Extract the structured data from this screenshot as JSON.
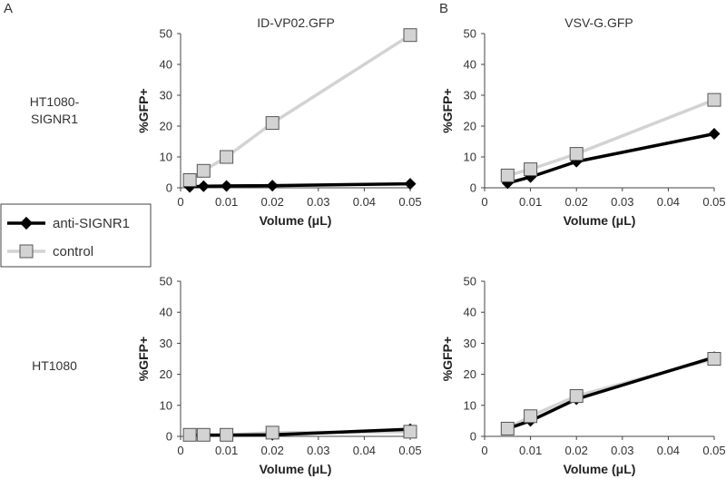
{
  "figure": {
    "panel_letters": [
      "A",
      "B"
    ],
    "row_labels": [
      {
        "lines": [
          "HT1080-",
          "SIGNR1"
        ]
      },
      {
        "lines": [
          "HT1080"
        ]
      }
    ],
    "legend": [
      {
        "name": "anti-SIGNR1",
        "color": "#000000",
        "marker": "diamond"
      },
      {
        "name": "control",
        "color": "#d3d3d3",
        "marker": "square"
      }
    ]
  },
  "chart_data": [
    {
      "type": "line",
      "title": "ID-VP02.GFP",
      "xlabel": "Volume (μL)",
      "ylabel": "%GFP+",
      "xlim": [
        0,
        0.05
      ],
      "ylim": [
        0,
        50
      ],
      "x_ticks": [
        "0",
        "0.01",
        "0.02",
        "0.03",
        "0.04",
        "0.05"
      ],
      "y_ticks": [
        "0",
        "10",
        "20",
        "30",
        "40",
        "50"
      ],
      "series": [
        {
          "name": "control",
          "x": [
            0.002,
            0.005,
            0.01,
            0.02,
            0.05
          ],
          "values": [
            2.5,
            5.5,
            10,
            21,
            49.5
          ]
        },
        {
          "name": "anti-SIGNR1",
          "x": [
            0.002,
            0.005,
            0.01,
            0.02,
            0.05
          ],
          "values": [
            0.3,
            0.5,
            0.6,
            0.7,
            1.3
          ]
        }
      ]
    },
    {
      "type": "line",
      "title": "VSV-G.GFP",
      "xlabel": "Volume (μL)",
      "ylabel": "%GFP+",
      "xlim": [
        0,
        0.05
      ],
      "ylim": [
        0,
        50
      ],
      "x_ticks": [
        "0",
        "0.01",
        "0.02",
        "0.03",
        "0.04",
        "0.05"
      ],
      "y_ticks": [
        "0",
        "10",
        "20",
        "30",
        "40",
        "50"
      ],
      "series": [
        {
          "name": "control",
          "x": [
            0.005,
            0.01,
            0.02,
            0.05
          ],
          "values": [
            4,
            6,
            11,
            28.5
          ]
        },
        {
          "name": "anti-SIGNR1",
          "x": [
            0.005,
            0.01,
            0.02,
            0.05
          ],
          "values": [
            1.5,
            3.5,
            8.5,
            17.5
          ]
        }
      ]
    },
    {
      "type": "line",
      "title": "",
      "xlabel": "Volume (μL)",
      "ylabel": "%GFP+",
      "xlim": [
        0,
        0.05
      ],
      "ylim": [
        0,
        50
      ],
      "x_ticks": [
        "0",
        "0.01",
        "0.02",
        "0.03",
        "0.04",
        "0.05"
      ],
      "y_ticks": [
        "0",
        "10",
        "20",
        "30",
        "40",
        "50"
      ],
      "series": [
        {
          "name": "control",
          "x": [
            0.002,
            0.005,
            0.01,
            0.02,
            0.05
          ],
          "values": [
            0.5,
            0.5,
            0.5,
            1.2,
            1.5
          ]
        },
        {
          "name": "anti-SIGNR1",
          "x": [
            0.002,
            0.005,
            0.01,
            0.02,
            0.05
          ],
          "values": [
            0.3,
            0.4,
            0.4,
            0.5,
            2.3
          ]
        }
      ]
    },
    {
      "type": "line",
      "title": "",
      "xlabel": "Volume (μL)",
      "ylabel": "%GFP+",
      "xlim": [
        0,
        0.05
      ],
      "ylim": [
        0,
        50
      ],
      "x_ticks": [
        "0",
        "0.01",
        "0.02",
        "0.03",
        "0.04",
        "0.05"
      ],
      "y_ticks": [
        "0",
        "10",
        "20",
        "30",
        "40",
        "50"
      ],
      "series": [
        {
          "name": "control",
          "x": [
            0.005,
            0.01,
            0.02,
            0.05
          ],
          "values": [
            2.5,
            6.5,
            13,
            25
          ]
        },
        {
          "name": "anti-SIGNR1",
          "x": [
            0.005,
            0.01,
            0.02,
            0.05
          ],
          "values": [
            2.5,
            5,
            12,
            25.5
          ]
        }
      ]
    }
  ]
}
